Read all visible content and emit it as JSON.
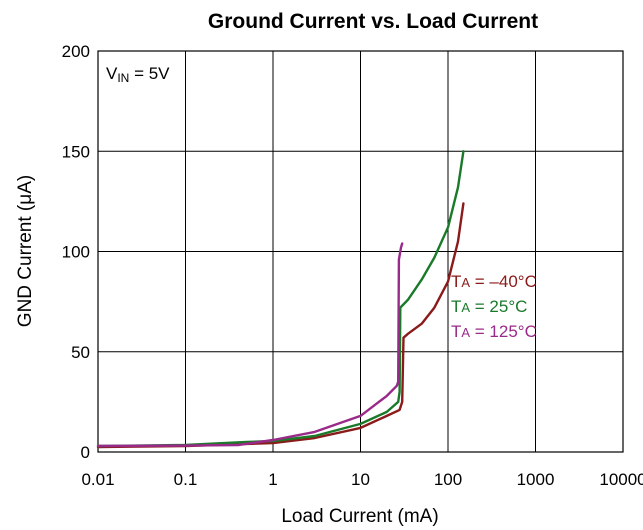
{
  "chart_data": {
    "type": "line",
    "title": "Ground Current vs. Load Current",
    "xlabel": "Load Current (mA)",
    "ylabel": "GND Current (μA)",
    "x_scale": "log",
    "xlim": [
      0.01,
      10000
    ],
    "ylim": [
      0,
      200
    ],
    "x_ticks": [
      0.01,
      0.1,
      1,
      10,
      100,
      1000,
      10000
    ],
    "x_tick_labels": [
      "0.01",
      "0.1",
      "1",
      "10",
      "100",
      "1000",
      "10000"
    ],
    "y_ticks": [
      0,
      50,
      100,
      150,
      200
    ],
    "y_tick_labels": [
      "0",
      "50",
      "100",
      "150",
      "200"
    ],
    "grid": true,
    "annotation": {
      "prefix": "V",
      "sub": "IN",
      "suffix": " = 5V"
    },
    "series": [
      {
        "name": "TA = –40°C",
        "label_parts": {
          "prefix": "T",
          "sub": "A",
          "suffix": " = –40°C"
        },
        "color": "#8b1a1a",
        "points": [
          [
            0.01,
            2.5
          ],
          [
            0.1,
            3
          ],
          [
            1,
            4.5
          ],
          [
            3,
            7
          ],
          [
            10,
            12
          ],
          [
            20,
            18
          ],
          [
            28,
            21
          ],
          [
            30,
            25
          ],
          [
            31,
            57
          ],
          [
            35,
            59
          ],
          [
            50,
            64
          ],
          [
            70,
            72
          ],
          [
            100,
            85
          ],
          [
            130,
            105
          ],
          [
            150,
            124
          ]
        ]
      },
      {
        "name": "TA = 25°C",
        "label_parts": {
          "prefix": "T",
          "sub": "A",
          "suffix": " = 25°C"
        },
        "color": "#1a7a2a",
        "points": [
          [
            0.01,
            3
          ],
          [
            0.1,
            3.5
          ],
          [
            0.5,
            5
          ],
          [
            1,
            5.5
          ],
          [
            3,
            8
          ],
          [
            10,
            14
          ],
          [
            20,
            20
          ],
          [
            27,
            25
          ],
          [
            28,
            30
          ],
          [
            28.5,
            72
          ],
          [
            35,
            76
          ],
          [
            50,
            86
          ],
          [
            70,
            97
          ],
          [
            100,
            112
          ],
          [
            130,
            132
          ],
          [
            150,
            150
          ]
        ]
      },
      {
        "name": "TA = 125°C",
        "label_parts": {
          "prefix": "T",
          "sub": "A",
          "suffix": " = 125°C"
        },
        "color": "#9a2a8a",
        "points": [
          [
            0.01,
            3
          ],
          [
            0.1,
            3.2
          ],
          [
            0.4,
            3.5
          ],
          [
            1,
            6
          ],
          [
            3,
            10
          ],
          [
            10,
            18
          ],
          [
            20,
            28
          ],
          [
            26,
            33
          ],
          [
            27,
            35
          ],
          [
            27.5,
            96
          ],
          [
            29,
            102
          ],
          [
            30,
            104
          ]
        ]
      }
    ]
  }
}
